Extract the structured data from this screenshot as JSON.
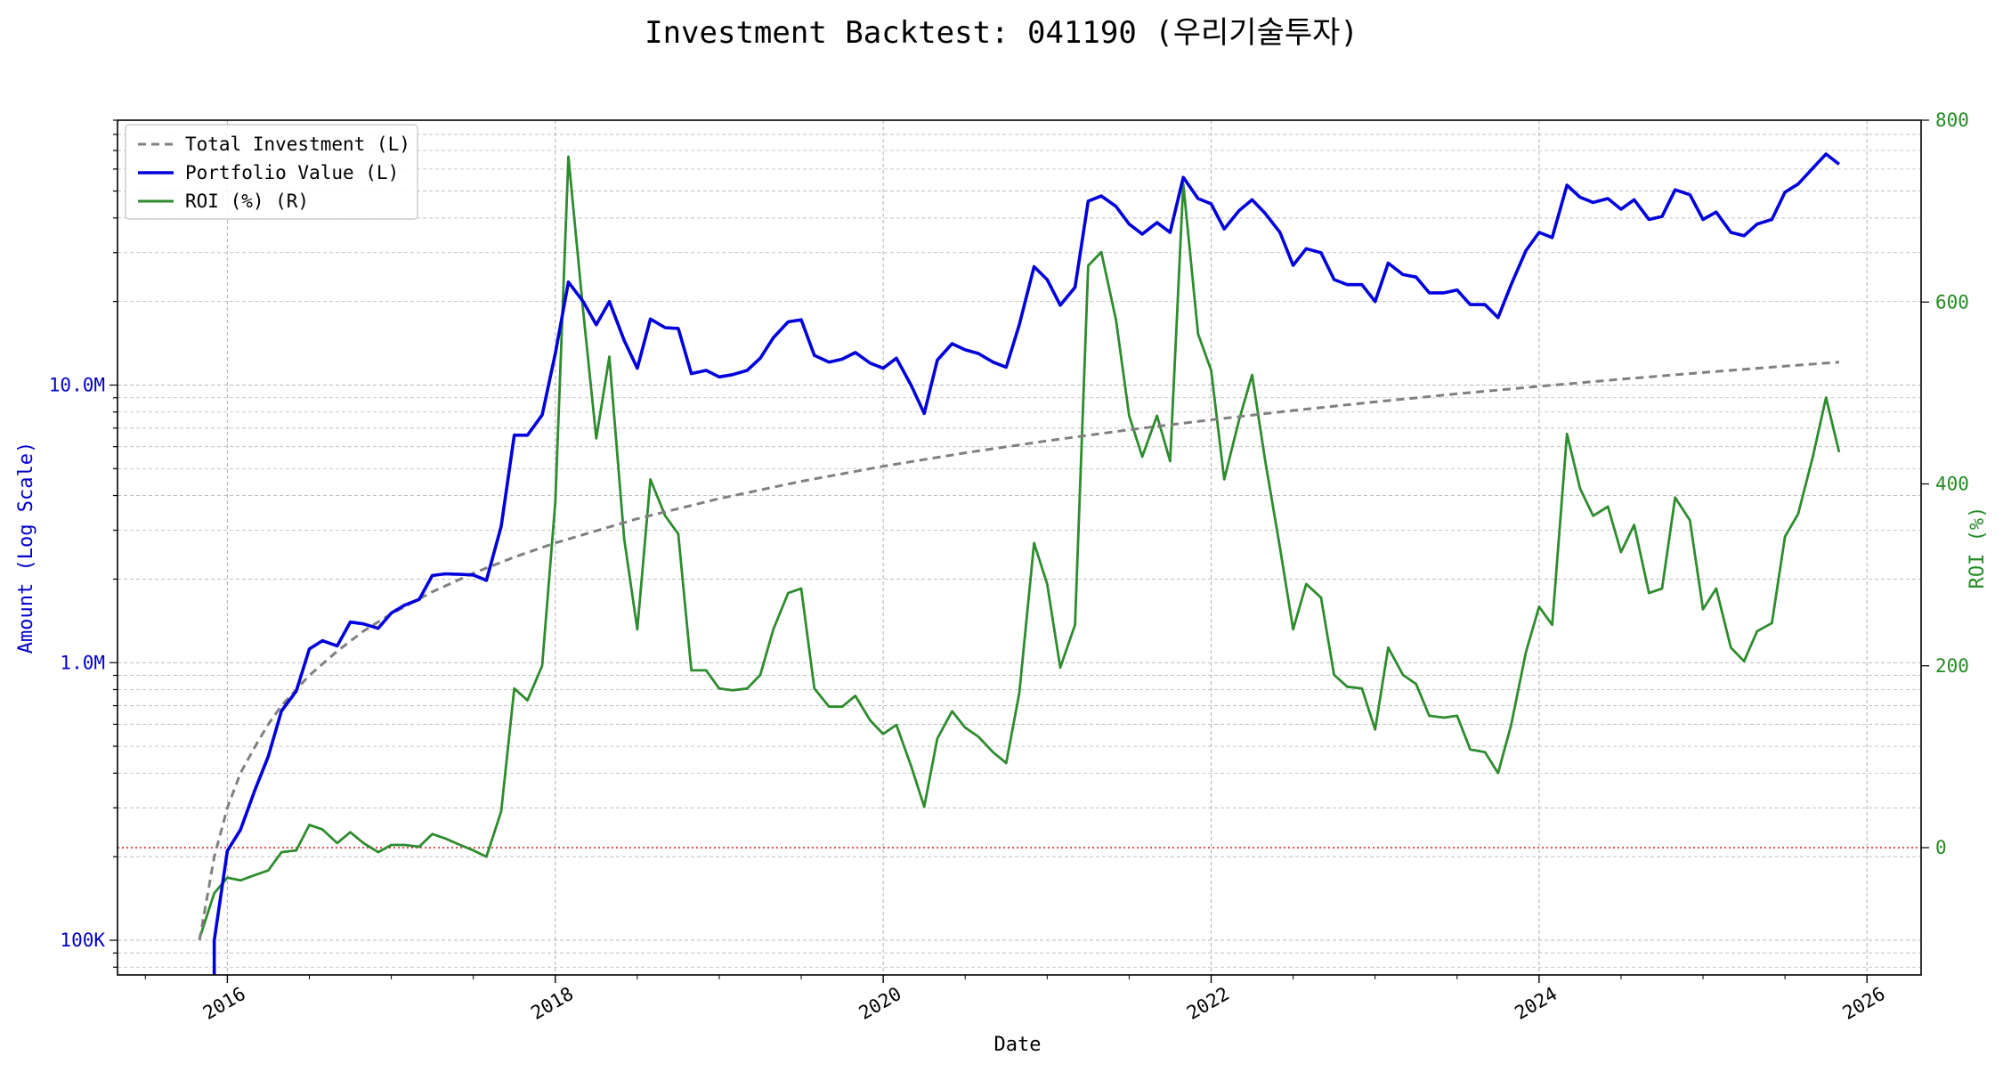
{
  "chart_data": {
    "type": "line",
    "title": "Investment Backtest: 041190 (우리기술투자)",
    "xlabel": "Date",
    "ylabel_left": "Amount (Log Scale)",
    "ylabel_right": "ROI (%)",
    "left_scale": "log",
    "grid": true,
    "legend_placement": "top-left",
    "x_range": [
      2015.33,
      2026.33
    ],
    "y_left_range": [
      75000,
      90000000
    ],
    "y_right_range": [
      -140,
      800
    ],
    "x_ticks": [
      {
        "value": 2016,
        "label": "2016"
      },
      {
        "value": 2018,
        "label": "2018"
      },
      {
        "value": 2020,
        "label": "2020"
      },
      {
        "value": 2022,
        "label": "2022"
      },
      {
        "value": 2024,
        "label": "2024"
      },
      {
        "value": 2026,
        "label": "2026"
      }
    ],
    "y_left_ticks": [
      {
        "value": 100000,
        "label": "100K"
      },
      {
        "value": 1000000,
        "label": "1.0M"
      },
      {
        "value": 10000000,
        "label": "10.0M"
      }
    ],
    "y_right_ticks": [
      {
        "value": 0,
        "label": "0"
      },
      {
        "value": 200,
        "label": "200"
      },
      {
        "value": 400,
        "label": "400"
      },
      {
        "value": 600,
        "label": "600"
      },
      {
        "value": 800,
        "label": "800"
      }
    ],
    "zero_reference_line": {
      "value": 0,
      "axis": "right",
      "color": "#cc0000",
      "style": "dotted"
    },
    "colors": {
      "investment": "#808080",
      "portfolio": "#0000dd",
      "roi": "#2e8b2e",
      "left_axis": "#0000cc",
      "right_axis": "#228b22",
      "zero_line": "#cc0000"
    },
    "series": [
      {
        "name": "Total Investment (L)",
        "axis": "left",
        "style": "dashed",
        "x": [
          2015.83,
          2015.92,
          2016.0,
          2016.08,
          2016.17,
          2016.25,
          2016.33,
          2016.5,
          2016.67,
          2016.83,
          2017.0,
          2017.25,
          2017.5,
          2017.75,
          2018.0,
          2018.5,
          2019.0,
          2019.5,
          2020.0,
          2020.5,
          2021.0,
          2021.5,
          2022.0,
          2022.5,
          2023.0,
          2023.5,
          2024.0,
          2024.5,
          2025.0,
          2025.5,
          2025.83
        ],
        "y": [
          100000,
          200000,
          300000,
          400000,
          500000,
          600000,
          700000,
          900000,
          1100000,
          1300000,
          1500000,
          1800000,
          2100000,
          2400000,
          2700000,
          3300000,
          3900000,
          4500000,
          5100000,
          5700000,
          6300000,
          6900000,
          7500000,
          8100000,
          8700000,
          9300000,
          9900000,
          10500000,
          11100000,
          11700000,
          12100000
        ]
      },
      {
        "name": "Portfolio Value (L)",
        "axis": "left",
        "style": "solid",
        "x": [
          2015.92,
          2016.0,
          2016.08,
          2016.17,
          2016.25,
          2016.33,
          2016.42,
          2016.5,
          2016.58,
          2016.67,
          2016.75,
          2016.83,
          2016.92,
          2017.0,
          2017.08,
          2017.17,
          2017.25,
          2017.33,
          2017.42,
          2017.5,
          2017.58,
          2017.67,
          2017.75,
          2017.83,
          2017.92,
          2018.0,
          2018.08,
          2018.17,
          2018.25,
          2018.33,
          2018.42,
          2018.5,
          2018.58,
          2018.67,
          2018.75,
          2018.83,
          2018.92,
          2019.0,
          2019.08,
          2019.17,
          2019.25,
          2019.33,
          2019.42,
          2019.5,
          2019.58,
          2019.67,
          2019.75,
          2019.83,
          2019.92,
          2020.0,
          2020.08,
          2020.17,
          2020.25,
          2020.33,
          2020.42,
          2020.5,
          2020.58,
          2020.67,
          2020.75,
          2020.83,
          2020.92,
          2021.0,
          2021.08,
          2021.17,
          2021.25,
          2021.33,
          2021.42,
          2021.5,
          2021.58,
          2021.67,
          2021.75,
          2021.83,
          2021.92,
          2022.0,
          2022.08,
          2022.17,
          2022.25,
          2022.33,
          2022.42,
          2022.5,
          2022.58,
          2022.67,
          2022.75,
          2022.83,
          2022.92,
          2023.0,
          2023.08,
          2023.17,
          2023.25,
          2023.33,
          2023.42,
          2023.5,
          2023.58,
          2023.67,
          2023.75,
          2023.83,
          2023.92,
          2024.0,
          2024.08,
          2024.17,
          2024.25,
          2024.33,
          2024.42,
          2024.5,
          2024.58,
          2024.67,
          2024.75,
          2024.83,
          2024.92,
          2025.0,
          2025.08,
          2025.17,
          2025.25,
          2025.33,
          2025.42,
          2025.5,
          2025.58,
          2025.67,
          2025.75,
          2025.83
        ],
        "y": [
          100000,
          210000,
          250000,
          350000,
          460000,
          670000,
          790000,
          1120000,
          1200000,
          1150000,
          1400000,
          1380000,
          1330000,
          1510000,
          1610000,
          1690000,
          2060000,
          2090000,
          2080000,
          2070000,
          1980000,
          3100000,
          6600000,
          6600000,
          7800000,
          13000000,
          23500000,
          20000000,
          16500000,
          20000000,
          14500000,
          11500000,
          17300000,
          16100000,
          16000000,
          11000000,
          11300000,
          10700000,
          10900000,
          11300000,
          12500000,
          14800000,
          16900000,
          17200000,
          12800000,
          12100000,
          12400000,
          13100000,
          12000000,
          11500000,
          12500000,
          10000000,
          7900000,
          12300000,
          14100000,
          13400000,
          13000000,
          12100000,
          11600000,
          16500000,
          26700000,
          24000000,
          19400000,
          22500000,
          46000000,
          48000000,
          44000000,
          38000000,
          35000000,
          38500000,
          35500000,
          56000000,
          47000000,
          45000000,
          36500000,
          42500000,
          46500000,
          41500000,
          35500000,
          27000000,
          31000000,
          30000000,
          24000000,
          23000000,
          23000000,
          20000000,
          27500000,
          25000000,
          24500000,
          21500000,
          21500000,
          22000000,
          19500000,
          19500000,
          17500000,
          23000000,
          30500000,
          35500000,
          34000000,
          52500000,
          47500000,
          45500000,
          47000000,
          43000000,
          46500000,
          39500000,
          40500000,
          50500000,
          48500000,
          39500000,
          42000000,
          35500000,
          34500000,
          38000000,
          39500000,
          49500000,
          53000000,
          60500000,
          68000000,
          62500000
        ]
      },
      {
        "name": "ROI (%) (R)",
        "axis": "right",
        "style": "solid",
        "x": [
          2015.83,
          2015.92,
          2016.0,
          2016.08,
          2016.17,
          2016.25,
          2016.33,
          2016.42,
          2016.5,
          2016.58,
          2016.67,
          2016.75,
          2016.83,
          2016.92,
          2017.0,
          2017.08,
          2017.17,
          2017.25,
          2017.33,
          2017.42,
          2017.5,
          2017.58,
          2017.67,
          2017.75,
          2017.83,
          2017.92,
          2018.0,
          2018.08,
          2018.17,
          2018.25,
          2018.33,
          2018.42,
          2018.5,
          2018.58,
          2018.67,
          2018.75,
          2018.83,
          2018.92,
          2019.0,
          2019.08,
          2019.17,
          2019.25,
          2019.33,
          2019.42,
          2019.5,
          2019.58,
          2019.67,
          2019.75,
          2019.83,
          2019.92,
          2020.0,
          2020.08,
          2020.17,
          2020.25,
          2020.33,
          2020.42,
          2020.5,
          2020.58,
          2020.67,
          2020.75,
          2020.83,
          2020.92,
          2021.0,
          2021.08,
          2021.17,
          2021.25,
          2021.33,
          2021.42,
          2021.5,
          2021.58,
          2021.67,
          2021.75,
          2021.83,
          2021.92,
          2022.0,
          2022.08,
          2022.17,
          2022.25,
          2022.33,
          2022.42,
          2022.5,
          2022.58,
          2022.67,
          2022.75,
          2022.83,
          2022.92,
          2023.0,
          2023.08,
          2023.17,
          2023.25,
          2023.33,
          2023.42,
          2023.5,
          2023.58,
          2023.67,
          2023.75,
          2023.83,
          2023.92,
          2024.0,
          2024.08,
          2024.17,
          2024.25,
          2024.33,
          2024.42,
          2024.5,
          2024.58,
          2024.67,
          2024.75,
          2024.83,
          2024.92,
          2025.0,
          2025.08,
          2025.17,
          2025.25,
          2025.33,
          2025.42,
          2025.5,
          2025.58,
          2025.67,
          2025.75,
          2025.83
        ],
        "y": [
          -100,
          -50,
          -33,
          -36,
          -30,
          -25,
          -5,
          -3,
          25,
          20,
          5,
          17,
          5,
          -5,
          3,
          3,
          1,
          15,
          10,
          3,
          -3,
          -10,
          40,
          175,
          162,
          200,
          380,
          760,
          590,
          450,
          540,
          340,
          240,
          405,
          365,
          345,
          195,
          195,
          175,
          173,
          175,
          190,
          240,
          280,
          285,
          175,
          155,
          155,
          167,
          140,
          125,
          135,
          90,
          45,
          120,
          150,
          132,
          122,
          105,
          93,
          170,
          335,
          290,
          198,
          245,
          640,
          655,
          580,
          475,
          430,
          475,
          425,
          730,
          565,
          525,
          405,
          470,
          520,
          425,
          330,
          240,
          290,
          275,
          190,
          177,
          175,
          130,
          220,
          190,
          180,
          145,
          143,
          145,
          108,
          105,
          82,
          135,
          215,
          265,
          245,
          455,
          395,
          365,
          375,
          325,
          355,
          280,
          285,
          385,
          360,
          262,
          285,
          220,
          205,
          238,
          247,
          342,
          367,
          430,
          495,
          435
        ]
      }
    ]
  }
}
